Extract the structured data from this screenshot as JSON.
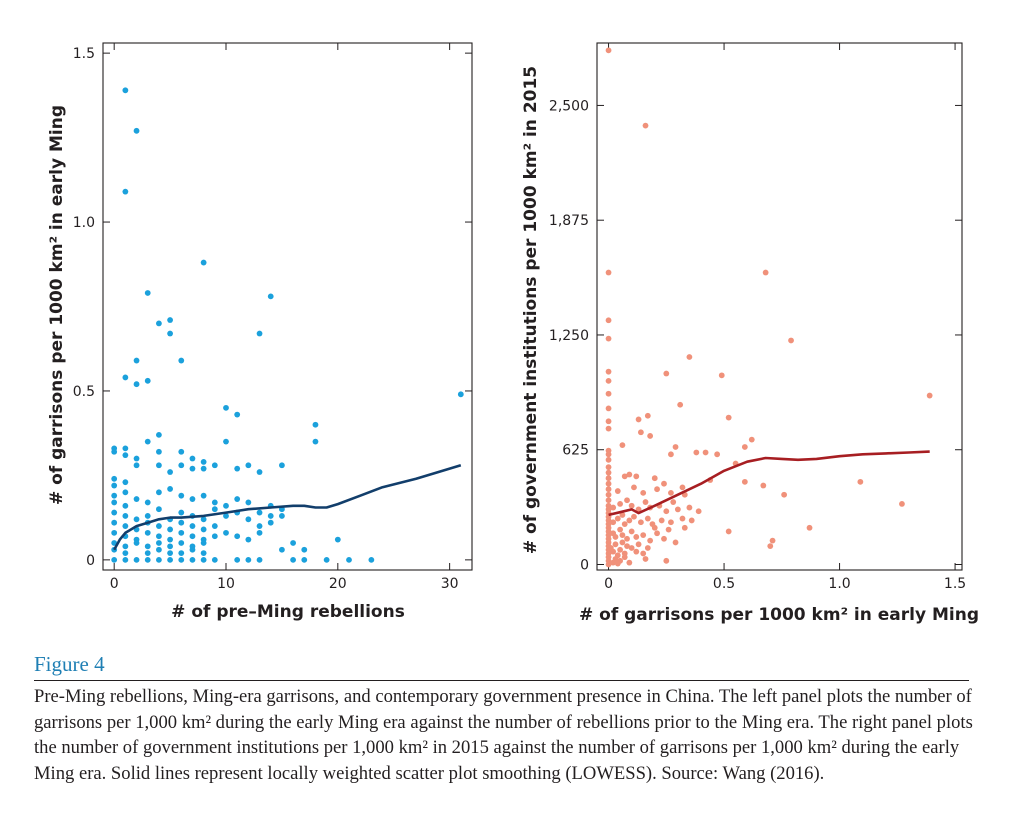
{
  "figure": {
    "label": "Figure 4",
    "caption": "Pre-Ming rebellions, Ming-era garrisons, and contemporary government presence in China. The left panel plots the number of garrisons per 1,000 km² during the early Ming era against the number of rebellions prior to the Ming era. The right panel plots the number of government institutions per 1,000 km² in 2015 against the number of garrisons per 1,000 km² during the early Ming era. Solid lines represent locally weighted scatter plot smoothing (LOWESS). Source: Wang (2016)."
  },
  "chart_data": [
    {
      "type": "scatter",
      "xlabel": "# of pre–Ming rebellions",
      "ylabel": "# of garrisons per 1000 km² in early Ming",
      "xlim": [
        -1,
        32
      ],
      "ylim": [
        -0.03,
        1.53
      ],
      "xticks": [
        0,
        10,
        20,
        30
      ],
      "xtick_labels": [
        "0",
        "10",
        "20",
        "30"
      ],
      "yticks": [
        0,
        0.5,
        1.0,
        1.5
      ],
      "ytick_labels": [
        "0",
        "0.5",
        "1.0",
        "1.5"
      ],
      "grid": false,
      "colors": {
        "points": "#1ba1dc",
        "line": "#123e6b"
      },
      "points": [
        [
          1,
          1.39
        ],
        [
          2,
          1.27
        ],
        [
          1,
          1.09
        ],
        [
          8,
          0.88
        ],
        [
          3,
          0.79
        ],
        [
          14,
          0.78
        ],
        [
          4,
          0.7
        ],
        [
          5,
          0.71
        ],
        [
          5,
          0.67
        ],
        [
          13,
          0.67
        ],
        [
          2,
          0.59
        ],
        [
          6,
          0.59
        ],
        [
          1,
          0.54
        ],
        [
          2,
          0.52
        ],
        [
          3,
          0.53
        ],
        [
          31,
          0.49
        ],
        [
          10,
          0.45
        ],
        [
          11,
          0.43
        ],
        [
          18,
          0.4
        ],
        [
          18,
          0.35
        ],
        [
          10,
          0.35
        ],
        [
          0,
          0.33
        ],
        [
          0,
          0.32
        ],
        [
          1,
          0.33
        ],
        [
          1,
          0.31
        ],
        [
          3,
          0.35
        ],
        [
          4,
          0.37
        ],
        [
          4,
          0.32
        ],
        [
          6,
          0.32
        ],
        [
          7,
          0.3
        ],
        [
          2,
          0.3
        ],
        [
          2,
          0.28
        ],
        [
          4,
          0.28
        ],
        [
          5,
          0.26
        ],
        [
          6,
          0.28
        ],
        [
          7,
          0.27
        ],
        [
          8,
          0.29
        ],
        [
          8,
          0.27
        ],
        [
          9,
          0.28
        ],
        [
          12,
          0.28
        ],
        [
          13,
          0.26
        ],
        [
          15,
          0.28
        ],
        [
          11,
          0.27
        ],
        [
          0,
          0.24
        ],
        [
          0,
          0.22
        ],
        [
          1,
          0.23
        ],
        [
          1,
          0.2
        ],
        [
          0,
          0.19
        ],
        [
          0,
          0.17
        ],
        [
          1,
          0.16
        ],
        [
          2,
          0.18
        ],
        [
          3,
          0.17
        ],
        [
          4,
          0.2
        ],
        [
          5,
          0.21
        ],
        [
          6,
          0.19
        ],
        [
          7,
          0.18
        ],
        [
          8,
          0.19
        ],
        [
          9,
          0.17
        ],
        [
          10,
          0.16
        ],
        [
          11,
          0.18
        ],
        [
          12,
          0.17
        ],
        [
          14,
          0.16
        ],
        [
          15,
          0.15
        ],
        [
          0,
          0.14
        ],
        [
          1,
          0.13
        ],
        [
          2,
          0.12
        ],
        [
          3,
          0.13
        ],
        [
          4,
          0.15
        ],
        [
          5,
          0.12
        ],
        [
          6,
          0.14
        ],
        [
          7,
          0.13
        ],
        [
          8,
          0.12
        ],
        [
          9,
          0.15
        ],
        [
          10,
          0.13
        ],
        [
          11,
          0.14
        ],
        [
          12,
          0.12
        ],
        [
          13,
          0.14
        ],
        [
          14,
          0.13
        ],
        [
          15,
          0.13
        ],
        [
          0,
          0.11
        ],
        [
          1,
          0.1
        ],
        [
          2,
          0.09
        ],
        [
          3,
          0.11
        ],
        [
          4,
          0.1
        ],
        [
          5,
          0.09
        ],
        [
          6,
          0.11
        ],
        [
          7,
          0.1
        ],
        [
          8,
          0.09
        ],
        [
          9,
          0.1
        ],
        [
          10,
          0.08
        ],
        [
          13,
          0.1
        ],
        [
          14,
          0.11
        ],
        [
          0,
          0.08
        ],
        [
          1,
          0.07
        ],
        [
          2,
          0.06
        ],
        [
          3,
          0.08
        ],
        [
          4,
          0.07
        ],
        [
          5,
          0.06
        ],
        [
          6,
          0.08
        ],
        [
          7,
          0.07
        ],
        [
          8,
          0.06
        ],
        [
          9,
          0.07
        ],
        [
          11,
          0.07
        ],
        [
          12,
          0.06
        ],
        [
          13,
          0.08
        ],
        [
          0,
          0.05
        ],
        [
          1,
          0.04
        ],
        [
          2,
          0.05
        ],
        [
          3,
          0.04
        ],
        [
          4,
          0.05
        ],
        [
          5,
          0.04
        ],
        [
          6,
          0.05
        ],
        [
          7,
          0.04
        ],
        [
          8,
          0.05
        ],
        [
          0,
          0.03
        ],
        [
          1,
          0.02
        ],
        [
          3,
          0.02
        ],
        [
          4,
          0.03
        ],
        [
          5,
          0.02
        ],
        [
          6,
          0.02
        ],
        [
          7,
          0.03
        ],
        [
          8,
          0.02
        ],
        [
          15,
          0.03
        ],
        [
          16,
          0.05
        ],
        [
          17,
          0.03
        ],
        [
          20,
          0.06
        ],
        [
          0,
          0
        ],
        [
          1,
          0
        ],
        [
          2,
          0
        ],
        [
          3,
          0
        ],
        [
          4,
          0
        ],
        [
          5,
          0
        ],
        [
          6,
          0
        ],
        [
          7,
          0
        ],
        [
          8,
          0
        ],
        [
          9,
          0
        ],
        [
          11,
          0
        ],
        [
          12,
          0
        ],
        [
          13,
          0
        ],
        [
          16,
          0
        ],
        [
          17,
          0
        ],
        [
          19,
          0
        ],
        [
          21,
          0
        ],
        [
          23,
          0
        ]
      ],
      "lowess": [
        [
          0,
          0.03
        ],
        [
          0.5,
          0.06
        ],
        [
          1,
          0.08
        ],
        [
          2,
          0.1
        ],
        [
          3,
          0.11
        ],
        [
          4,
          0.12
        ],
        [
          5,
          0.125
        ],
        [
          6,
          0.125
        ],
        [
          8,
          0.13
        ],
        [
          10,
          0.14
        ],
        [
          12,
          0.15
        ],
        [
          14,
          0.155
        ],
        [
          16,
          0.16
        ],
        [
          17,
          0.16
        ],
        [
          18,
          0.155
        ],
        [
          19,
          0.155
        ],
        [
          20,
          0.165
        ],
        [
          22,
          0.19
        ],
        [
          24,
          0.215
        ],
        [
          27,
          0.24
        ],
        [
          29,
          0.26
        ],
        [
          31,
          0.28
        ]
      ]
    },
    {
      "type": "scatter",
      "xlabel": "# of garrisons per 1000 km² in early Ming",
      "ylabel": "# of government institutions per 1000 km² in 2015",
      "xlim": [
        -0.05,
        1.53
      ],
      "ylim": [
        -30,
        2840
      ],
      "xticks": [
        0,
        0.5,
        1.0,
        1.5
      ],
      "xtick_labels": [
        "0",
        "0.5",
        "1.0",
        "1.5"
      ],
      "yticks": [
        0,
        625,
        1250,
        1875,
        2500
      ],
      "ytick_labels": [
        "0",
        "625",
        "1,250",
        "1,875",
        "2,500"
      ],
      "grid": false,
      "colors": {
        "points": "#f0917a",
        "line": "#a71e22"
      },
      "points": [
        [
          0,
          2800
        ],
        [
          0.16,
          2390
        ],
        [
          0,
          1590
        ],
        [
          0.68,
          1590
        ],
        [
          0,
          1330
        ],
        [
          0,
          1230
        ],
        [
          0.35,
          1130
        ],
        [
          0.79,
          1220
        ],
        [
          0,
          1050
        ],
        [
          0,
          1000
        ],
        [
          0.25,
          1040
        ],
        [
          0.49,
          1030
        ],
        [
          1.39,
          920
        ],
        [
          0,
          930
        ],
        [
          0,
          850
        ],
        [
          0.31,
          870
        ],
        [
          0,
          780
        ],
        [
          0.13,
          790
        ],
        [
          0.17,
          810
        ],
        [
          0.52,
          800
        ],
        [
          0,
          740
        ],
        [
          0.14,
          720
        ],
        [
          0.18,
          700
        ],
        [
          0.29,
          640
        ],
        [
          0.59,
          640
        ],
        [
          0.62,
          680
        ],
        [
          0.06,
          650
        ],
        [
          0,
          620
        ],
        [
          0,
          600
        ],
        [
          0,
          570
        ],
        [
          0.27,
          600
        ],
        [
          0.38,
          610
        ],
        [
          0.42,
          610
        ],
        [
          0.47,
          600
        ],
        [
          0.55,
          550
        ],
        [
          0,
          530
        ],
        [
          0,
          500
        ],
        [
          0,
          470
        ],
        [
          0.07,
          480
        ],
        [
          0.09,
          490
        ],
        [
          0.12,
          480
        ],
        [
          0.2,
          470
        ],
        [
          0.24,
          440
        ],
        [
          0.32,
          420
        ],
        [
          0.44,
          460
        ],
        [
          0.59,
          450
        ],
        [
          0,
          440
        ],
        [
          0,
          410
        ],
        [
          0,
          380
        ],
        [
          0.04,
          400
        ],
        [
          0.11,
          420
        ],
        [
          0.15,
          390
        ],
        [
          0.21,
          410
        ],
        [
          0.27,
          390
        ],
        [
          0.33,
          380
        ],
        [
          0.67,
          430
        ],
        [
          0.76,
          380
        ],
        [
          1.09,
          450
        ],
        [
          1.27,
          330
        ],
        [
          0,
          350
        ],
        [
          0,
          320
        ],
        [
          0,
          300
        ],
        [
          0,
          280
        ],
        [
          0.02,
          310
        ],
        [
          0.05,
          330
        ],
        [
          0.08,
          350
        ],
        [
          0.1,
          320
        ],
        [
          0.13,
          300
        ],
        [
          0.16,
          340
        ],
        [
          0.18,
          310
        ],
        [
          0.22,
          320
        ],
        [
          0.25,
          290
        ],
        [
          0.28,
          340
        ],
        [
          0.3,
          300
        ],
        [
          0.35,
          310
        ],
        [
          0.39,
          290
        ],
        [
          0,
          260
        ],
        [
          0,
          240
        ],
        [
          0,
          220
        ],
        [
          0,
          200
        ],
        [
          0.02,
          230
        ],
        [
          0.04,
          250
        ],
        [
          0.06,
          270
        ],
        [
          0.07,
          220
        ],
        [
          0.09,
          240
        ],
        [
          0.11,
          260
        ],
        [
          0.14,
          230
        ],
        [
          0.17,
          250
        ],
        [
          0.19,
          220
        ],
        [
          0.23,
          240
        ],
        [
          0.27,
          230
        ],
        [
          0.32,
          250
        ],
        [
          0.36,
          240
        ],
        [
          0.2,
          200
        ],
        [
          0.26,
          190
        ],
        [
          0.33,
          200
        ],
        [
          0,
          180
        ],
        [
          0,
          160
        ],
        [
          0,
          140
        ],
        [
          0,
          120
        ],
        [
          0.02,
          170
        ],
        [
          0.03,
          150
        ],
        [
          0.05,
          190
        ],
        [
          0.06,
          160
        ],
        [
          0.08,
          140
        ],
        [
          0.1,
          180
        ],
        [
          0.12,
          150
        ],
        [
          0.15,
          160
        ],
        [
          0.18,
          130
        ],
        [
          0.21,
          170
        ],
        [
          0.24,
          140
        ],
        [
          0.29,
          120
        ],
        [
          0.52,
          180
        ],
        [
          0.87,
          200
        ],
        [
          0.71,
          130
        ],
        [
          0.7,
          100
        ],
        [
          0,
          100
        ],
        [
          0,
          80
        ],
        [
          0,
          60
        ],
        [
          0,
          40
        ],
        [
          0,
          20
        ],
        [
          0,
          0
        ],
        [
          0.01,
          90
        ],
        [
          0.02,
          70
        ],
        [
          0.03,
          110
        ],
        [
          0.04,
          50
        ],
        [
          0.05,
          80
        ],
        [
          0.06,
          120
        ],
        [
          0.07,
          60
        ],
        [
          0.08,
          100
        ],
        [
          0.1,
          90
        ],
        [
          0.12,
          70
        ],
        [
          0.13,
          110
        ],
        [
          0.15,
          60
        ],
        [
          0.17,
          90
        ],
        [
          0.03,
          30
        ],
        [
          0.05,
          20
        ],
        [
          0.07,
          40
        ],
        [
          0.09,
          10
        ],
        [
          0.02,
          10
        ],
        [
          0.04,
          5
        ],
        [
          0.16,
          30
        ],
        [
          0.25,
          20
        ]
      ],
      "lowess": [
        [
          0,
          270
        ],
        [
          0.05,
          285
        ],
        [
          0.1,
          300
        ],
        [
          0.13,
          280
        ],
        [
          0.2,
          320
        ],
        [
          0.3,
          380
        ],
        [
          0.4,
          440
        ],
        [
          0.5,
          510
        ],
        [
          0.6,
          560
        ],
        [
          0.68,
          580
        ],
        [
          0.75,
          575
        ],
        [
          0.82,
          570
        ],
        [
          0.9,
          575
        ],
        [
          1.0,
          590
        ],
        [
          1.1,
          600
        ],
        [
          1.2,
          605
        ],
        [
          1.3,
          610
        ],
        [
          1.39,
          615
        ]
      ]
    }
  ]
}
